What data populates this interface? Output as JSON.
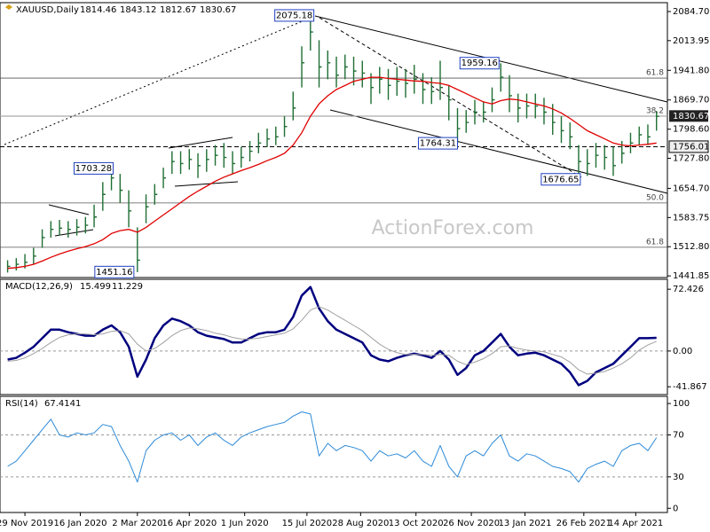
{
  "chart_data": [
    {
      "type": "ohlc",
      "title": "XAUUSD,Daily",
      "last": {
        "open": 1814.46,
        "high": 1843.12,
        "low": 1812.67,
        "close": 1830.67
      },
      "x": [
        -10,
        -5,
        0,
        5,
        10,
        15,
        20,
        25,
        30,
        35,
        40,
        45,
        50,
        55,
        60,
        65,
        70,
        75,
        80,
        85,
        90,
        95,
        100,
        105,
        110,
        115,
        120,
        125,
        130,
        135,
        140,
        145,
        150,
        155,
        160,
        165,
        170,
        175,
        180,
        185,
        190,
        195,
        200,
        205,
        210,
        215,
        220,
        225,
        230,
        235,
        240,
        245,
        250,
        255,
        260,
        265,
        270,
        275,
        280,
        285,
        290,
        295,
        300,
        305,
        310,
        315,
        320,
        325,
        330,
        335,
        340,
        345,
        350,
        355,
        360,
        365
      ],
      "xlim": [
        -14.4,
        371.3
      ],
      "xticks": [
        {
          "value": 0,
          "label": "29 Nov 2019"
        },
        {
          "value": 32,
          "label": "16 Jan 2020"
        },
        {
          "value": 65,
          "label": "2 Mar 2020"
        },
        {
          "value": 95,
          "label": "16 Apr 2020"
        },
        {
          "value": 127,
          "label": "1 Jun 2020"
        },
        {
          "value": 163,
          "label": "15 Jul 2020"
        },
        {
          "value": 194,
          "label": "28 Aug 2020"
        },
        {
          "value": 226,
          "label": "13 Oct 2020"
        },
        {
          "value": 258,
          "label": "26 Nov 2020"
        },
        {
          "value": 289,
          "label": "13 Jan 2021"
        },
        {
          "value": 323,
          "label": "26 Feb 2021"
        },
        {
          "value": 353,
          "label": "14 Apr 2021"
        }
      ],
      "ylim": [
        1440,
        2102
      ],
      "yticks": [
        {
          "value": 2084.7,
          "label": "2084.70"
        },
        {
          "value": 2013.95,
          "label": "2013.95"
        },
        {
          "value": 1941.8,
          "label": "1941.80"
        },
        {
          "value": 1869.7,
          "label": "1869.70"
        },
        {
          "value": 1798.6,
          "label": "1798.60"
        },
        {
          "value": 1727.8,
          "label": "1727.80"
        },
        {
          "value": 1654.7,
          "label": "1654.70"
        },
        {
          "value": 1583.75,
          "label": "1583.75"
        },
        {
          "value": 1512.8,
          "label": "1512.80"
        },
        {
          "value": 1441.85,
          "label": "1441.85"
        }
      ],
      "bar_color": "#1f6f33",
      "high": [
        1480,
        1485,
        1495,
        1510,
        1555,
        1575,
        1578,
        1575,
        1580,
        1585,
        1615,
        1670,
        1703,
        1690,
        1650,
        1560,
        1640,
        1665,
        1705,
        1745,
        1745,
        1750,
        1740,
        1750,
        1760,
        1765,
        1745,
        1755,
        1770,
        1790,
        1800,
        1805,
        1830,
        1890,
        2000,
        2075,
        2015,
        1990,
        1975,
        1980,
        1975,
        1965,
        1935,
        1950,
        1945,
        1950,
        1945,
        1955,
        1935,
        1925,
        1965,
        1905,
        1850,
        1845,
        1870,
        1865,
        1900,
        1959,
        1930,
        1885,
        1885,
        1885,
        1875,
        1860,
        1830,
        1815,
        1760,
        1750,
        1765,
        1760,
        1755,
        1770,
        1790,
        1805,
        1810,
        1843
      ],
      "low": [
        1450,
        1455,
        1460,
        1470,
        1510,
        1535,
        1540,
        1535,
        1540,
        1545,
        1560,
        1600,
        1650,
        1620,
        1560,
        1451,
        1570,
        1615,
        1655,
        1690,
        1690,
        1700,
        1680,
        1695,
        1710,
        1705,
        1690,
        1705,
        1720,
        1740,
        1755,
        1760,
        1780,
        1820,
        1900,
        1990,
        1900,
        1920,
        1900,
        1920,
        1905,
        1900,
        1860,
        1885,
        1870,
        1880,
        1875,
        1885,
        1860,
        1860,
        1870,
        1820,
        1764,
        1790,
        1810,
        1815,
        1840,
        1890,
        1840,
        1815,
        1825,
        1825,
        1810,
        1785,
        1765,
        1750,
        1677,
        1685,
        1705,
        1700,
        1685,
        1715,
        1740,
        1760,
        1760,
        1795
      ],
      "close": [
        1465,
        1470,
        1475,
        1490,
        1535,
        1555,
        1558,
        1555,
        1560,
        1565,
        1585,
        1640,
        1680,
        1650,
        1600,
        1480,
        1610,
        1640,
        1680,
        1720,
        1715,
        1725,
        1710,
        1725,
        1735,
        1730,
        1715,
        1730,
        1745,
        1765,
        1775,
        1780,
        1805,
        1850,
        1960,
        2035,
        1950,
        1960,
        1930,
        1950,
        1940,
        1935,
        1900,
        1920,
        1905,
        1915,
        1910,
        1920,
        1895,
        1890,
        1900,
        1870,
        1800,
        1815,
        1840,
        1840,
        1870,
        1925,
        1880,
        1850,
        1855,
        1855,
        1840,
        1815,
        1795,
        1780,
        1720,
        1715,
        1735,
        1730,
        1710,
        1740,
        1765,
        1785,
        1780,
        1830
      ],
      "ma": {
        "color": "#e00000",
        "values": [
          1460,
          1462,
          1465,
          1470,
          1478,
          1487,
          1495,
          1502,
          1508,
          1513,
          1520,
          1530,
          1545,
          1552,
          1555,
          1548,
          1560,
          1575,
          1590,
          1605,
          1620,
          1635,
          1648,
          1660,
          1672,
          1682,
          1690,
          1698,
          1705,
          1713,
          1722,
          1730,
          1740,
          1760,
          1790,
          1830,
          1860,
          1880,
          1895,
          1905,
          1915,
          1920,
          1925,
          1925,
          1922,
          1920,
          1918,
          1916,
          1915,
          1912,
          1910,
          1905,
          1895,
          1885,
          1875,
          1865,
          1860,
          1868,
          1872,
          1870,
          1865,
          1860,
          1855,
          1848,
          1838,
          1825,
          1810,
          1795,
          1785,
          1775,
          1765,
          1760,
          1758,
          1760,
          1762,
          1765
        ]
      },
      "annotations": [
        {
          "value": 2075.18,
          "x": 168
        },
        {
          "value": 1959.16,
          "x": 275
        },
        {
          "value": 1764.31,
          "x": 251
        },
        {
          "value": 1676.65,
          "x": 322
        },
        {
          "value": 1703.28,
          "x": 52
        },
        {
          "value": 1451.16,
          "x": 64
        }
      ],
      "levels": [
        {
          "value": 1922.9,
          "label": "61.8"
        },
        {
          "value": 1830.2,
          "label": "38.2"
        },
        {
          "value": 1619.3,
          "label": "50.0"
        },
        {
          "value": 1511.5,
          "label": "61.8"
        }
      ],
      "current": 1830.67,
      "support": 1756.01,
      "watermark": "ActionForex.com"
    },
    {
      "type": "line",
      "title": "MACD(12,26,9)",
      "last": [
        15.499,
        11.229
      ],
      "ylim": [
        -50,
        83
      ],
      "yticks": [
        72.426,
        {
          "value": 0,
          "label": "0.00"
        },
        -41.867
      ],
      "levels": [
        0
      ],
      "series": [
        {
          "color": "#00007f",
          "width": 2.5,
          "values": [
            -10,
            -8,
            -2,
            5,
            15,
            25,
            25,
            22,
            20,
            18,
            18,
            25,
            30,
            22,
            5,
            -30,
            -10,
            15,
            30,
            38,
            35,
            30,
            22,
            18,
            16,
            14,
            10,
            10,
            15,
            20,
            22,
            22,
            25,
            40,
            65,
            75,
            50,
            35,
            25,
            20,
            15,
            10,
            -5,
            -10,
            -12,
            -8,
            -5,
            -3,
            -5,
            -8,
            0,
            -10,
            -28,
            -20,
            -5,
            0,
            10,
            20,
            5,
            -5,
            -3,
            -2,
            -5,
            -10,
            -15,
            -25,
            -40,
            -35,
            -25,
            -20,
            -15,
            -5,
            5,
            15,
            15,
            15.499
          ]
        },
        {
          "color": "#a0a0a0",
          "width": 1,
          "values": [
            -12,
            -11,
            -8,
            -3,
            3,
            10,
            16,
            19,
            20,
            20,
            19,
            20,
            23,
            24,
            20,
            8,
            0,
            3,
            10,
            18,
            24,
            27,
            26,
            24,
            21,
            19,
            16,
            14,
            14,
            15,
            17,
            19,
            21,
            26,
            36,
            48,
            52,
            48,
            42,
            36,
            30,
            24,
            16,
            8,
            2,
            -2,
            -4,
            -4,
            -4,
            -5,
            -4,
            -5,
            -12,
            -16,
            -13,
            -9,
            -3,
            5,
            6,
            3,
            1,
            0,
            -1,
            -4,
            -7,
            -13,
            -22,
            -27,
            -26,
            -24,
            -20,
            -15,
            -8,
            1,
            7,
            11.229
          ]
        }
      ]
    },
    {
      "type": "line",
      "title": "RSI(14)",
      "last": [
        67.4141
      ],
      "ylim": [
        -4,
        106
      ],
      "yticks": [
        100,
        70,
        30,
        0
      ],
      "levels": [
        70,
        30
      ],
      "series": [
        {
          "color": "#2d8ad8",
          "width": 1,
          "values": [
            40,
            45,
            55,
            65,
            75,
            85,
            70,
            68,
            72,
            70,
            72,
            80,
            78,
            60,
            45,
            25,
            55,
            65,
            70,
            72,
            65,
            70,
            60,
            68,
            72,
            65,
            60,
            68,
            72,
            75,
            78,
            80,
            82,
            88,
            92,
            90,
            50,
            62,
            55,
            60,
            58,
            55,
            45,
            55,
            50,
            52,
            48,
            55,
            45,
            40,
            60,
            40,
            30,
            50,
            55,
            50,
            62,
            70,
            50,
            45,
            52,
            50,
            45,
            40,
            38,
            35,
            25,
            38,
            42,
            45,
            40,
            55,
            60,
            62,
            55,
            67.4141
          ]
        }
      ]
    }
  ]
}
